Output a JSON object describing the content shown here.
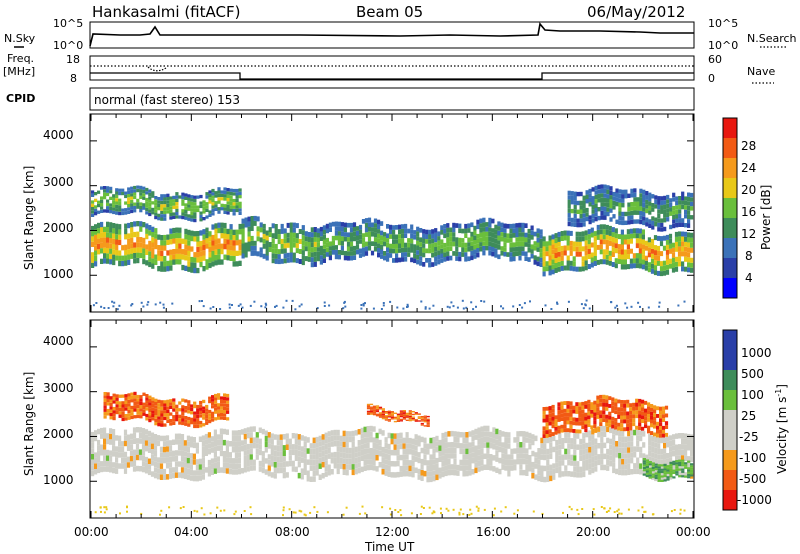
{
  "header": {
    "station": "Hankasalmi (fitACF)",
    "beam": "Beam 05",
    "date": "06/May/2012"
  },
  "sky_panel": {
    "label": "N.Sky",
    "right_label": "N.Search",
    "left_ticks": [
      "10^5",
      "10^0"
    ],
    "right_ticks": [
      "10^5",
      "10^0"
    ]
  },
  "freq_panel": {
    "label_line1": "Freq.",
    "label_line2": "[MHz]",
    "left_ticks": [
      "18",
      "8"
    ],
    "right_ticks": [
      "60",
      "0"
    ],
    "right_label": "Nave"
  },
  "cpid_panel": {
    "label": "CPID",
    "mode": "normal (fast stereo) 153"
  },
  "x_axis": {
    "label": "Time UT",
    "ticks": [
      "00:00",
      "04:00",
      "08:00",
      "12:00",
      "16:00",
      "20:00",
      "00:00"
    ]
  },
  "power_panel": {
    "ylabel": "Slant Range [km]",
    "yticks": [
      "4000",
      "3000",
      "2000",
      "1000"
    ],
    "colorbar_label": "Power [dB]",
    "colorbar_ticks": [
      "28",
      "24",
      "20",
      "16",
      "12",
      "8",
      "4"
    ]
  },
  "velocity_panel": {
    "ylabel": "Slant Range [km]",
    "yticks": [
      "4000",
      "3000",
      "2000",
      "1000"
    ],
    "colorbar_label": "Velocity [m s",
    "colorbar_label_sup": "-1",
    "colorbar_label_end": "]",
    "colorbar_ticks": [
      "1000",
      "500",
      "100",
      "25",
      "-25",
      "-100",
      "-500",
      "-1000"
    ]
  },
  "chart_data": [
    {
      "type": "heatmap",
      "title": "Power",
      "xlabel": "Time UT",
      "ylabel": "Slant Range [km]",
      "xlim_hours": [
        0,
        24
      ],
      "ylim_km": [
        180,
        4600
      ],
      "colorbar": {
        "label": "Power [dB]",
        "levels": [
          0,
          4,
          8,
          12,
          16,
          20,
          24,
          28,
          32
        ],
        "colors": [
          "#0000ff",
          "#2a3fa8",
          "#3b72b8",
          "#3e8c5a",
          "#6abf3c",
          "#e8c818",
          "#f59a1c",
          "#f25a14",
          "#e8170f"
        ]
      },
      "echo_bands": [
        {
          "t": [
            0.0,
            6.0
          ],
          "range_km": [
            1150,
            2100
          ],
          "power_db": 26
        },
        {
          "t": [
            0.0,
            6.0
          ],
          "range_km": [
            2300,
            2900
          ],
          "power_db": 18
        },
        {
          "t": [
            6.0,
            9.0
          ],
          "range_km": [
            1300,
            2200
          ],
          "power_db": 18
        },
        {
          "t": [
            9.0,
            18.0
          ],
          "range_km": [
            1300,
            2150
          ],
          "power_db": 16
        },
        {
          "t": [
            18.0,
            24.0
          ],
          "range_km": [
            1100,
            2000
          ],
          "power_db": 26
        },
        {
          "t": [
            19.0,
            24.0
          ],
          "range_km": [
            2100,
            2900
          ],
          "power_db": 14
        }
      ]
    },
    {
      "type": "heatmap",
      "title": "Velocity",
      "xlabel": "Time UT",
      "ylabel": "Slant Range [km]",
      "xlim_hours": [
        0,
        24
      ],
      "ylim_km": [
        180,
        4600
      ],
      "colorbar": {
        "label": "Velocity [m s-1]",
        "levels": [
          -1000,
          -500,
          -100,
          -25,
          25,
          100,
          500,
          1000
        ],
        "colors": [
          "#e8170f",
          "#f25a14",
          "#f59a1c",
          "#cfcfc8",
          "#cfcfc8",
          "#6abf3c",
          "#3e8c5a",
          "#2a3fa8",
          "#2a3fa8"
        ]
      },
      "echo_bands": [
        {
          "t": [
            0.0,
            24.0
          ],
          "range_km": [
            1100,
            2100
          ],
          "velocity_ms": 0
        },
        {
          "t": [
            0.5,
            5.5
          ],
          "range_km": [
            2300,
            2900
          ],
          "velocity_ms": -300
        },
        {
          "t": [
            11.0,
            13.5
          ],
          "range_km": [
            2350,
            2600
          ],
          "velocity_ms": -400
        },
        {
          "t": [
            18.0,
            23.0
          ],
          "range_km": [
            2100,
            2800
          ],
          "velocity_ms": -300
        },
        {
          "t": [
            22.0,
            24.0
          ],
          "range_km": [
            1100,
            1500
          ],
          "velocity_ms": 150
        }
      ]
    }
  ]
}
